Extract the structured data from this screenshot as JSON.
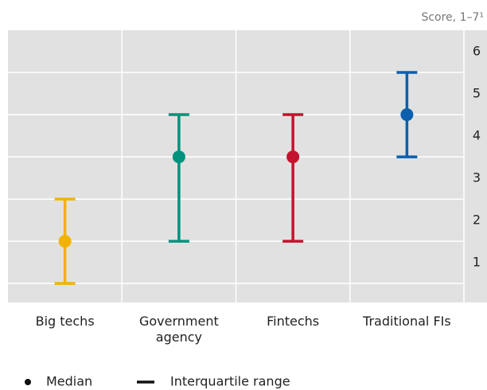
{
  "chart_data": {
    "type": "errorbar",
    "y_label": "Score, 1–7¹",
    "categories": [
      "Big techs",
      "Government agency",
      "Fintechs",
      "Traditional FIs"
    ],
    "colors": [
      "#f2b200",
      "#00927c",
      "#c4122f",
      "#0a5fae"
    ],
    "series": [
      {
        "name": "Median",
        "values": [
          2,
          4,
          4,
          5
        ]
      },
      {
        "name": "Interquartile range",
        "low": [
          1,
          2,
          2,
          4
        ],
        "high": [
          3,
          5,
          5,
          6
        ]
      }
    ],
    "ylim": [
      0.55,
      7
    ],
    "yticks": [
      1,
      2,
      3,
      4,
      5,
      6
    ],
    "grid": true
  }
}
